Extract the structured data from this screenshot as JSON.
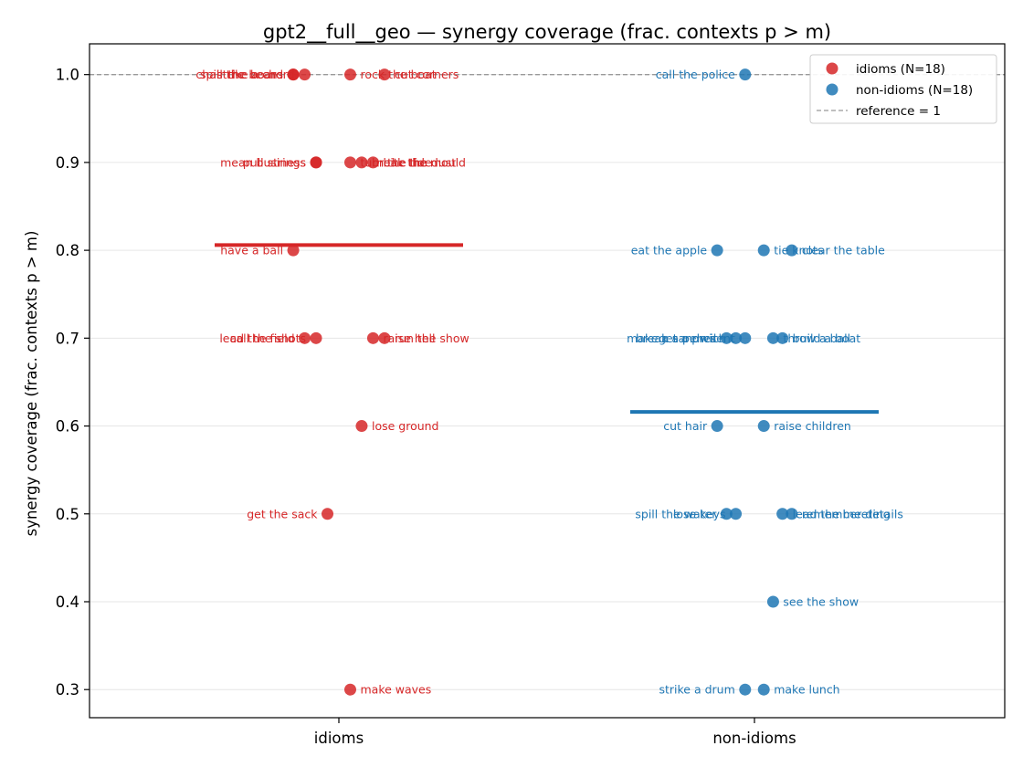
{
  "chart_data": {
    "type": "scatter",
    "title": "gpt2__full__geo — synergy coverage  (frac. contexts p > m)",
    "xlabel": "",
    "ylabel": "synergy coverage  (frac. contexts p > m)",
    "categories": [
      "idioms",
      "non-idioms"
    ],
    "ylim": [
      0.268,
      1.035
    ],
    "yticks": [
      0.3,
      0.4,
      0.5,
      0.6,
      0.7,
      0.8,
      0.9,
      1.0
    ],
    "grid": "horizontal",
    "legend_position": "top-right",
    "reference": {
      "value": 1.0,
      "label": "reference = 1"
    },
    "series": [
      {
        "name": "idioms (N=18)",
        "category": "idioms",
        "color": "#d62728",
        "mean": 0.806,
        "points": [
          {
            "label": "spill the beans",
            "y": 1.0,
            "x": -0.22,
            "side": "left"
          },
          {
            "label": "chair the board",
            "y": 1.0,
            "x": -0.22,
            "side": "left"
          },
          {
            "label": "strike a chord",
            "y": 1.0,
            "x": -0.165,
            "side": "left"
          },
          {
            "label": "cut corners",
            "y": 1.0,
            "x": 0.22,
            "side": "right"
          },
          {
            "label": "rock the boat",
            "y": 1.0,
            "x": 0.055,
            "side": "right"
          },
          {
            "label": "mean business",
            "y": 0.9,
            "x": -0.11,
            "side": "left"
          },
          {
            "label": "pull strings",
            "y": 0.9,
            "x": -0.11,
            "side": "left"
          },
          {
            "label": "break the mould",
            "y": 0.9,
            "x": 0.11,
            "side": "right"
          },
          {
            "label": "turn the tide",
            "y": 0.9,
            "x": 0.055,
            "side": "right"
          },
          {
            "label": "bite the dust",
            "y": 0.9,
            "x": 0.165,
            "side": "right"
          },
          {
            "label": "have a ball",
            "y": 0.8,
            "x": -0.22,
            "side": "left"
          },
          {
            "label": "lead the field",
            "y": 0.7,
            "x": -0.165,
            "side": "left"
          },
          {
            "label": "call the shots",
            "y": 0.7,
            "x": -0.11,
            "side": "left"
          },
          {
            "label": "raise hell",
            "y": 0.7,
            "x": 0.165,
            "side": "right"
          },
          {
            "label": "run the show",
            "y": 0.7,
            "x": 0.22,
            "side": "right"
          },
          {
            "label": "lose ground",
            "y": 0.6,
            "x": 0.11,
            "side": "right"
          },
          {
            "label": "get the sack",
            "y": 0.5,
            "x": -0.055,
            "side": "left"
          },
          {
            "label": "make waves",
            "y": 0.3,
            "x": 0.055,
            "side": "right"
          }
        ]
      },
      {
        "name": "non-idioms (N=18)",
        "category": "non-idioms",
        "color": "#1f77b4",
        "mean": 0.616,
        "points": [
          {
            "label": "call the police",
            "y": 1.0,
            "x": -0.045,
            "side": "left"
          },
          {
            "label": "eat the apple",
            "y": 0.8,
            "x": -0.18,
            "side": "left"
          },
          {
            "label": "tie knots",
            "y": 0.8,
            "x": 0.045,
            "side": "right"
          },
          {
            "label": "clear the table",
            "y": 0.8,
            "x": 0.18,
            "side": "right"
          },
          {
            "label": "break a pencil",
            "y": 0.7,
            "x": -0.135,
            "side": "left"
          },
          {
            "label": "make a sandwich",
            "y": 0.7,
            "x": -0.09,
            "side": "left"
          },
          {
            "label": "get a present",
            "y": 0.7,
            "x": -0.045,
            "side": "left"
          },
          {
            "label": "throw a ball",
            "y": 0.7,
            "x": 0.09,
            "side": "right"
          },
          {
            "label": "build a boat",
            "y": 0.7,
            "x": 0.135,
            "side": "right"
          },
          {
            "label": "cut hair",
            "y": 0.6,
            "x": -0.18,
            "side": "left"
          },
          {
            "label": "raise children",
            "y": 0.6,
            "x": 0.045,
            "side": "right"
          },
          {
            "label": "spill the water",
            "y": 0.5,
            "x": -0.135,
            "side": "left"
          },
          {
            "label": "lose keys",
            "y": 0.5,
            "x": -0.09,
            "side": "left"
          },
          {
            "label": "lead the meeting",
            "y": 0.5,
            "x": 0.135,
            "side": "right"
          },
          {
            "label": "remember details",
            "y": 0.5,
            "x": 0.18,
            "side": "right"
          },
          {
            "label": "see the show",
            "y": 0.4,
            "x": 0.09,
            "side": "right"
          },
          {
            "label": "strike a drum",
            "y": 0.3,
            "x": -0.045,
            "side": "left"
          },
          {
            "label": "make lunch",
            "y": 0.3,
            "x": 0.045,
            "side": "right"
          }
        ]
      }
    ]
  }
}
